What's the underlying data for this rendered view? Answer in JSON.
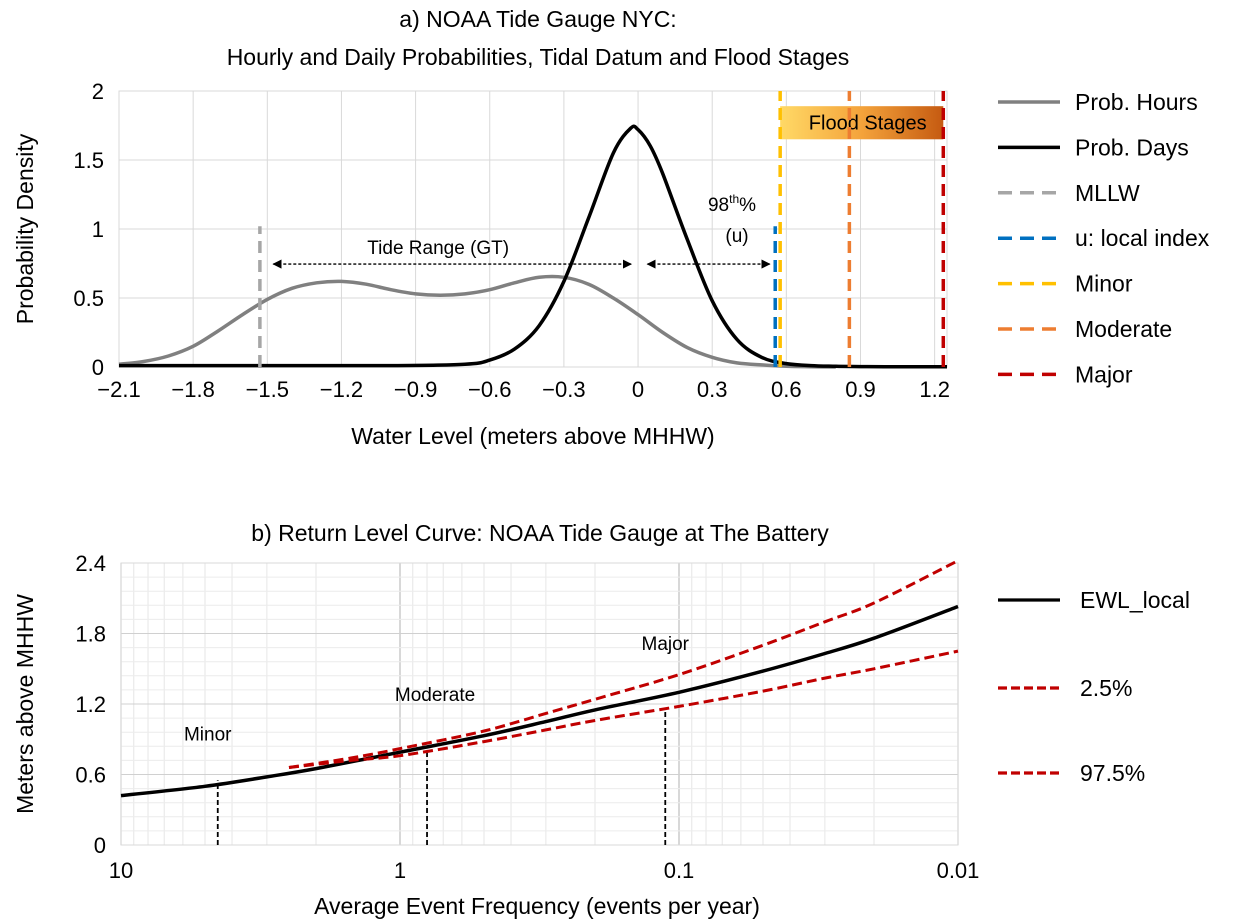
{
  "chart_data": [
    {
      "panel": "a",
      "type": "line",
      "title": "a)  NOAA Tide Gauge NYC:",
      "subtitle": "Hourly and Daily Probabilities, Tidal Datum and Flood Stages",
      "xlabel": "Water Level (meters above MHHW)",
      "ylabel": "Probability Density",
      "xlim": [
        -2.1,
        1.25
      ],
      "ylim": [
        0,
        2
      ],
      "xticks": [
        "−2.1",
        "−1.8",
        "−1.5",
        "−1.2",
        "−0.9",
        "−0.6",
        "−0.3",
        "0",
        "0.3",
        "0.6",
        "0.9",
        "1.2"
      ],
      "yticks": [
        "0",
        "0.5",
        "1",
        "1.5",
        "2"
      ],
      "grid": true,
      "legend_position": "right",
      "series": [
        {
          "name": "Prob. Hours",
          "color": "#808080",
          "style": "solid",
          "x": [
            -2.1,
            -2.0,
            -1.9,
            -1.8,
            -1.7,
            -1.6,
            -1.5,
            -1.4,
            -1.3,
            -1.2,
            -1.1,
            -1.0,
            -0.9,
            -0.8,
            -0.7,
            -0.6,
            -0.5,
            -0.4,
            -0.3,
            -0.2,
            -0.1,
            0.0,
            0.1,
            0.2,
            0.3,
            0.4,
            0.5,
            0.6,
            0.7,
            0.8
          ],
          "y": [
            0.02,
            0.04,
            0.08,
            0.15,
            0.26,
            0.38,
            0.49,
            0.57,
            0.61,
            0.62,
            0.6,
            0.56,
            0.53,
            0.52,
            0.53,
            0.56,
            0.61,
            0.65,
            0.65,
            0.6,
            0.5,
            0.38,
            0.25,
            0.14,
            0.07,
            0.03,
            0.015,
            0.005,
            0.002,
            0.0
          ]
        },
        {
          "name": "Prob. Days",
          "color": "#000000",
          "style": "solid",
          "x": [
            -2.1,
            -1.5,
            -1.0,
            -0.7,
            -0.6,
            -0.5,
            -0.4,
            -0.3,
            -0.2,
            -0.1,
            -0.03,
            0.0,
            0.05,
            0.1,
            0.2,
            0.3,
            0.4,
            0.5,
            0.6,
            0.7,
            0.8,
            0.9,
            1.0,
            1.25
          ],
          "y": [
            0.01,
            0.01,
            0.01,
            0.02,
            0.05,
            0.13,
            0.3,
            0.62,
            1.08,
            1.55,
            1.73,
            1.72,
            1.6,
            1.4,
            0.92,
            0.48,
            0.2,
            0.07,
            0.025,
            0.01,
            0.005,
            0.003,
            0.002,
            0.002
          ]
        }
      ],
      "vlines": [
        {
          "name": "MLLW",
          "x": -1.53,
          "y_top": 1.02,
          "color": "#a6a6a6",
          "style": "dashed"
        },
        {
          "name": "u: local index",
          "x": 0.555,
          "y_top": 1.02,
          "color": "#0070c0",
          "style": "dashed"
        },
        {
          "name": "Minor",
          "x": 0.575,
          "y_top": 2.0,
          "color": "#ffc000",
          "style": "dashed"
        },
        {
          "name": "Moderate",
          "x": 0.855,
          "y_top": 2.0,
          "color": "#ed7d31",
          "style": "dashed"
        },
        {
          "name": "Major",
          "x": 1.235,
          "y_top": 2.0,
          "color": "#c00000",
          "style": "dashed"
        }
      ],
      "annotations": {
        "tide_range": {
          "text": "Tide Range (GT)",
          "x_from": -1.5,
          "x_to": -0.02,
          "y": 0.84
        },
        "pct98": {
          "line1": "98",
          "sup": "th",
          "line1_end": "%",
          "line2": "(u)",
          "x_from": 0.03,
          "x_to": 0.5,
          "y": 0.84
        },
        "flood_stages": {
          "text": "Flood Stages",
          "x_from": 0.575,
          "x_to": 1.235,
          "y_from": 1.65,
          "y_to": 1.89
        }
      }
    },
    {
      "panel": "b",
      "type": "line",
      "title": "b) Return Level Curve: NOAA Tide Gauge at The Battery",
      "xlabel": "Average Event Frequency (events per year)",
      "ylabel": "Meters above MHHW",
      "x_scale": "log",
      "x_reversed": true,
      "xlim": [
        10,
        0.01
      ],
      "ylim": [
        0,
        2.4
      ],
      "xticks": [
        "10",
        "1",
        "0.1",
        "0.01"
      ],
      "yticks": [
        "0",
        "0.6",
        "1.2",
        "1.8",
        "2.4"
      ],
      "grid": true,
      "legend_position": "right",
      "series": [
        {
          "name": "EWL_local",
          "color": "#000000",
          "style": "solid",
          "x": [
            10,
            5,
            3,
            2,
            1,
            0.5,
            0.3,
            0.2,
            0.1,
            0.05,
            0.03,
            0.02,
            0.01
          ],
          "y": [
            0.42,
            0.5,
            0.58,
            0.65,
            0.79,
            0.93,
            1.05,
            1.15,
            1.3,
            1.48,
            1.63,
            1.76,
            2.03
          ]
        },
        {
          "name": "2.5%",
          "color": "#c00000",
          "style": "dashed",
          "x": [
            2.5,
            1.5,
            1,
            0.5,
            0.3,
            0.2,
            0.1,
            0.05,
            0.03,
            0.02,
            0.01
          ],
          "y": [
            0.66,
            0.74,
            0.82,
            0.97,
            1.12,
            1.24,
            1.45,
            1.7,
            1.9,
            2.06,
            2.42
          ]
        },
        {
          "name": "97.5%",
          "color": "#c00000",
          "style": "dashed",
          "x": [
            2.5,
            1.5,
            1,
            0.5,
            0.3,
            0.2,
            0.1,
            0.05,
            0.03,
            0.02,
            0.01
          ],
          "y": [
            0.66,
            0.72,
            0.76,
            0.88,
            0.98,
            1.06,
            1.18,
            1.31,
            1.42,
            1.5,
            1.65
          ]
        }
      ],
      "markers": [
        {
          "label": "Minor",
          "x": 4.5,
          "y": 0.55
        },
        {
          "label": "Moderate",
          "x": 0.8,
          "y": 0.8
        },
        {
          "label": "Major",
          "x": 0.112,
          "y": 1.15
        }
      ]
    }
  ]
}
